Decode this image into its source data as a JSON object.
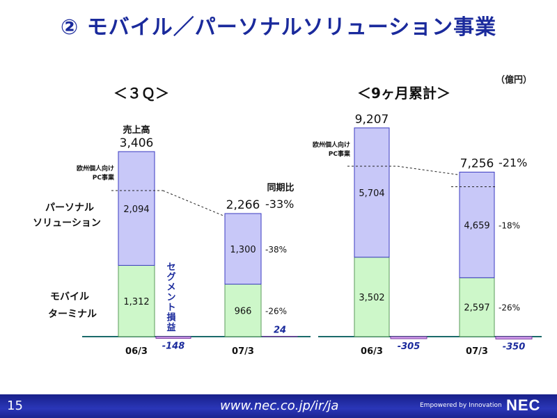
{
  "page_title": "② モバイル／パーソナルソリューション事業",
  "unit_label": "（億円）",
  "footer": {
    "page_number": "15",
    "url": "www.nec.co.jp/ir/ja",
    "tagline": "Empowered by Innovation",
    "logo": "NEC"
  },
  "colors": {
    "personal_solution": "#c8c8f8",
    "mobile_terminal": "#cdf7c9",
    "segment_profit": "#d5a2f0",
    "panel_bg": "#ffffff",
    "title_text": "#1a2a9c"
  },
  "chart_data": [
    {
      "type": "bar",
      "stacked": true,
      "title": "＜３Ｑ＞",
      "categories": [
        "06/3",
        "07/3"
      ],
      "series": [
        {
          "name": "モバイルターミナル",
          "values": [
            1312,
            966
          ]
        },
        {
          "name": "パーソナルソリューション",
          "values": [
            2094,
            1300
          ]
        },
        {
          "name": "セグメント損益",
          "values": [
            -148,
            24
          ]
        }
      ],
      "totals": [
        3406,
        2266
      ],
      "total_label": "売上高",
      "total_labels": [
        "3,406",
        "2,266"
      ],
      "stack_labels": {
        "mobile": [
          "1,312",
          "966"
        ],
        "personal": [
          "2,094",
          "1,300"
        ]
      },
      "profit_labels": [
        "-148",
        "24"
      ],
      "yoy_label": "同期比",
      "yoy_total": "-33%",
      "yoy_personal": "-38%",
      "yoy_mobile": "-26%",
      "pc_note": "欧州個人向けPC事業",
      "segment_label": "セグメント損益",
      "series_labels": {
        "personal": "パーソナルソリューション",
        "mobile": "モバイルターミナル"
      }
    },
    {
      "type": "bar",
      "stacked": true,
      "title": "＜9ヶ月累計＞",
      "categories": [
        "06/3",
        "07/3"
      ],
      "series": [
        {
          "name": "モバイルターミナル",
          "values": [
            3502,
            2597
          ]
        },
        {
          "name": "パーソナルソリューション",
          "values": [
            5704,
            4659
          ]
        },
        {
          "name": "セグメント損益",
          "values": [
            -305,
            -350
          ]
        }
      ],
      "totals": [
        9207,
        7256
      ],
      "total_labels": [
        "9,207",
        "7,256"
      ],
      "stack_labels": {
        "mobile": [
          "3,502",
          "2,597"
        ],
        "personal": [
          "5,704",
          "4,659"
        ]
      },
      "profit_labels": [
        "-305",
        "-350"
      ],
      "yoy_total": "-21%",
      "yoy_personal": "-18%",
      "yoy_mobile": "-26%",
      "pc_note": "欧州個人向けPC事業"
    }
  ]
}
